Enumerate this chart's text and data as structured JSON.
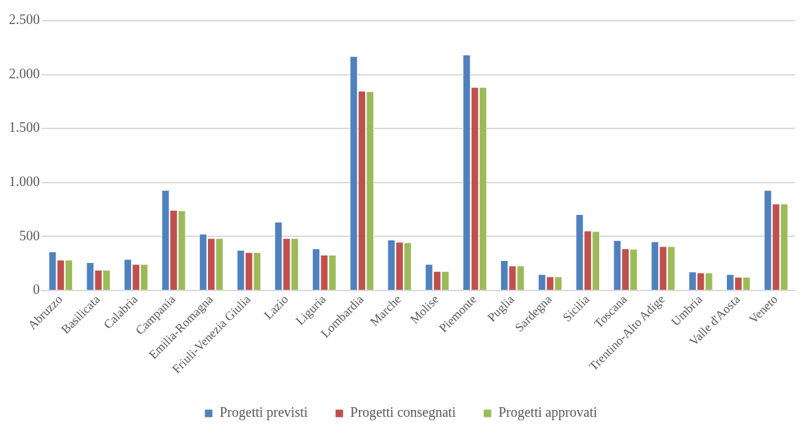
{
  "chart_data": {
    "type": "bar",
    "categories": [
      "Abruzzo",
      "Basilicata",
      "Calabria",
      "Campania",
      "Emilia-Romagna",
      "Friuli-Venezia Giulia",
      "Lazio",
      "Liguria",
      "Lombardia",
      "Marche",
      "Molise",
      "Piemonte",
      "Puglia",
      "Sardegna",
      "Sicilia",
      "Toscana",
      "Trentino-Alto Adige",
      "Umbria",
      "Valle d'Aosta",
      "Veneto"
    ],
    "series": [
      {
        "name": "Progetti previsti",
        "color": "#4f81bd",
        "values": [
          360,
          260,
          290,
          930,
          525,
          375,
          635,
          390,
          2170,
          470,
          245,
          2185,
          280,
          150,
          705,
          465,
          455,
          175,
          150,
          930
        ]
      },
      {
        "name": "Progetti consegnati",
        "color": "#c0504d",
        "values": [
          285,
          190,
          245,
          745,
          485,
          355,
          485,
          330,
          1850,
          450,
          180,
          1885,
          230,
          130,
          555,
          390,
          410,
          165,
          125,
          805
        ]
      },
      {
        "name": "Progetti approvati",
        "color": "#9bbb59",
        "values": [
          285,
          190,
          245,
          740,
          485,
          355,
          485,
          330,
          1845,
          445,
          180,
          1885,
          230,
          130,
          550,
          385,
          410,
          165,
          125,
          805
        ]
      }
    ],
    "ylim": [
      0,
      2500
    ],
    "yticks": [
      0,
      500,
      {
        "value": 1000,
        "label": "1.000"
      },
      {
        "value": 1500,
        "label": "1.500"
      },
      {
        "value": 2000,
        "label": "2.000"
      },
      {
        "value": 2500,
        "label": "2.500"
      }
    ],
    "grid": "y",
    "legend": "bottom"
  }
}
